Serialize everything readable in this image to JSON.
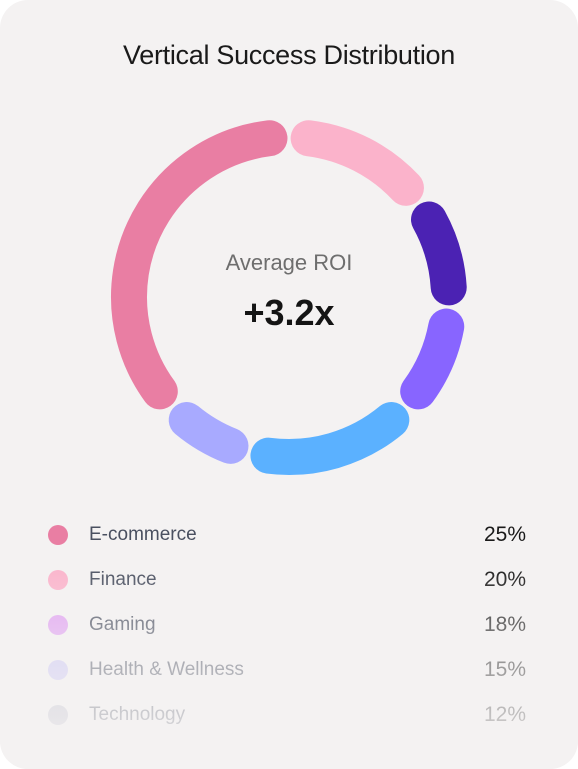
{
  "chart_data": {
    "type": "pie",
    "title": "Vertical Success Distribution",
    "center_label": "Average ROI",
    "center_value": "+3.2x",
    "slices": [
      {
        "name": "E-commerce",
        "value": 25,
        "label": "25%",
        "color": "#e97ea3"
      },
      {
        "name": "Finance",
        "value": 20,
        "label": "20%",
        "color": "#fbb3cb"
      },
      {
        "name": "Gaming",
        "value": 18,
        "label": "18%",
        "color": "#e0a0f2"
      },
      {
        "name": "Health & Wellness",
        "value": 15,
        "label": "15%",
        "color": "#c9c4f5"
      },
      {
        "name": "Technology",
        "value": 12,
        "label": "12%",
        "color": "#b8b8c8"
      }
    ],
    "ring_arcs": [
      {
        "value": 15,
        "color": "#fbb3cb"
      },
      {
        "value": 11,
        "color": "#4b22b3"
      },
      {
        "value": 11,
        "color": "#8865ff"
      },
      {
        "value": 17,
        "color": "#5bb1ff"
      },
      {
        "value": 9,
        "color": "#a8aaff"
      },
      {
        "value": 37,
        "color": "#e97ea3"
      }
    ]
  }
}
